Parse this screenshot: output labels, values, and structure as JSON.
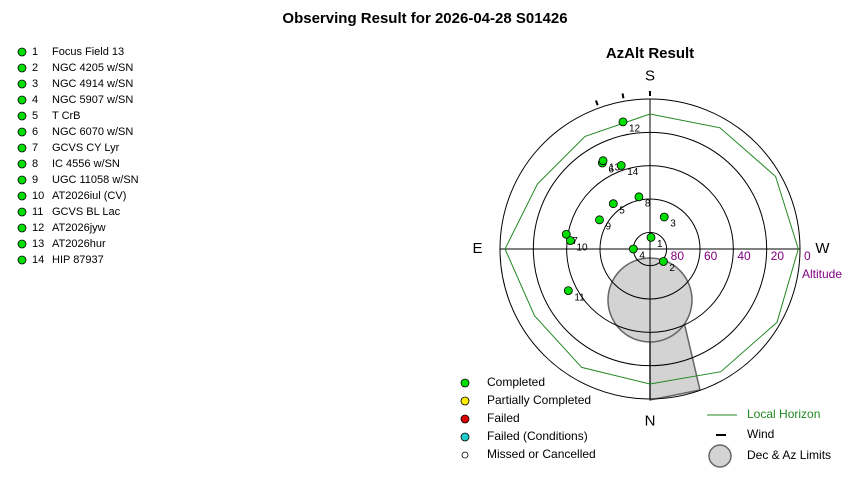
{
  "title": "Observing Result for 2026-04-28 S01426",
  "target_list": [
    {
      "number": "1",
      "name": "Focus Field 13"
    },
    {
      "number": "2",
      "name": "NGC 4205 w/SN"
    },
    {
      "number": "3",
      "name": "NGC 4914 w/SN"
    },
    {
      "number": "4",
      "name": "NGC 5907 w/SN"
    },
    {
      "number": "5",
      "name": "T CrB"
    },
    {
      "number": "6",
      "name": "NGC 6070 w/SN"
    },
    {
      "number": "7",
      "name": "GCVS CY Lyr"
    },
    {
      "number": "8",
      "name": "IC 4556 w/SN"
    },
    {
      "number": "9",
      "name": "UGC 11058 w/SN"
    },
    {
      "number": "10",
      "name": "AT2026iul (CV)"
    },
    {
      "number": "11",
      "name": "GCVS BL Lac"
    },
    {
      "number": "12",
      "name": "AT2026jyw"
    },
    {
      "number": "13",
      "name": "AT2026hur"
    },
    {
      "number": "14",
      "name": "HIP 87937"
    }
  ],
  "chart_data": {
    "type": "polar",
    "title": "AzAlt Result",
    "azticks": [
      {
        "value": 180,
        "label": "S"
      },
      {
        "value": 270,
        "label": "W"
      },
      {
        "value": 0,
        "label": "N"
      },
      {
        "value": 90,
        "label": "E"
      }
    ],
    "rlim": [
      90,
      0
    ],
    "rticks": [
      80,
      60,
      40,
      20,
      0
    ],
    "raxis_label": "Altitude",
    "series": [
      {
        "name": "Completed",
        "color": "#00dd00",
        "labels": [
          "1",
          "2",
          "3",
          "4",
          "5",
          "6",
          "7",
          "8",
          "9",
          "10",
          "11",
          "12",
          "13",
          "14"
        ],
        "az": [
          185,
          313,
          204,
          90,
          141,
          151,
          100,
          168,
          120,
          96,
          63,
          168,
          152,
          161
        ],
        "alt": [
          83,
          79,
          69,
          80,
          55,
          31,
          39,
          58,
          55,
          42,
          35,
          12,
          30,
          37
        ]
      },
      {
        "name": "Partially Completed",
        "color": "#ffee00",
        "labels": [],
        "az": [],
        "alt": []
      },
      {
        "name": "Failed",
        "color": "#dd0000",
        "labels": [],
        "az": [],
        "alt": []
      },
      {
        "name": "Failed (Conditions)",
        "color": "#22cccc",
        "labels": [],
        "az": [],
        "alt": []
      },
      {
        "name": "Missed or Cancelled",
        "color": "#ffffff",
        "labels": [],
        "az": [],
        "alt": []
      }
    ],
    "horizon": {
      "name": "Local Horizon",
      "color": "#228822",
      "az": [
        0,
        30,
        60,
        90,
        120,
        150,
        180,
        210,
        240,
        270,
        300,
        330,
        360
      ],
      "alt": [
        9,
        8,
        10,
        3,
        12,
        12,
        9,
        6,
        3,
        1,
        2,
        5,
        9
      ]
    },
    "wind": {
      "name": "Wind",
      "az": [
        160,
        170,
        180
      ]
    },
    "limits": {
      "name": "Dec & Az Limits"
    }
  }
}
